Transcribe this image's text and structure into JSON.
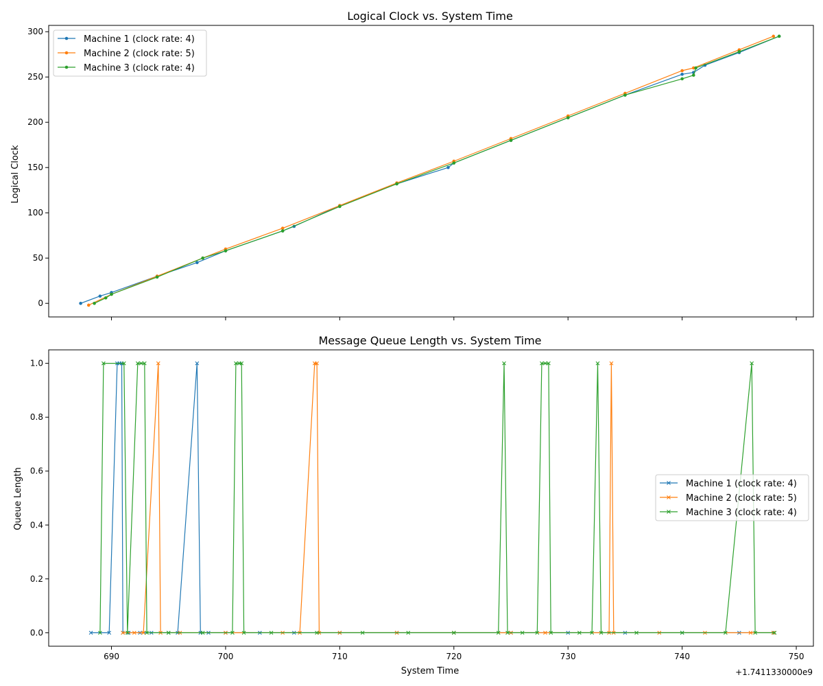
{
  "colors": {
    "machine1": "#1f77b4",
    "machine2": "#ff7f0e",
    "machine3": "#2ca02c"
  },
  "chart_data": [
    {
      "type": "line",
      "title": "Logical Clock vs. System Time",
      "xlabel": "",
      "ylabel": "Logical Clock",
      "xlim": [
        684.5,
        751.5
      ],
      "ylim": [
        -15,
        307
      ],
      "xticks": [
        690,
        700,
        710,
        720,
        730,
        740,
        750
      ],
      "xtick_labels_shown": false,
      "yticks": [
        0,
        50,
        100,
        150,
        200,
        250,
        300
      ],
      "grid": false,
      "legend_position": "upper-left",
      "marker": "circle",
      "series": [
        {
          "name": "Machine 1 (clock rate: 4)",
          "color": "#1f77b4",
          "x": [
            687.3,
            689.0,
            690.0,
            694.0,
            697.5,
            700.0,
            705.0,
            706.0,
            710.0,
            715.0,
            719.5,
            720.0,
            725.0,
            730.0,
            735.0,
            740.0,
            741.0,
            742.0,
            745.0,
            748.5
          ],
          "y": [
            0,
            8,
            12,
            30,
            45,
            58,
            80,
            85,
            108,
            132,
            150,
            155,
            180,
            205,
            230,
            253,
            255,
            263,
            277,
            295
          ]
        },
        {
          "name": "Machine 2 (clock rate: 5)",
          "color": "#ff7f0e",
          "x": [
            688.0,
            690.0,
            694.0,
            698.0,
            700.0,
            705.0,
            710.0,
            715.0,
            720.0,
            725.0,
            730.0,
            735.0,
            740.0,
            741.0,
            745.0,
            748.0
          ],
          "y": [
            -2,
            10,
            30,
            50,
            60,
            83,
            108,
            133,
            157,
            182,
            207,
            232,
            257,
            260,
            280,
            295
          ]
        },
        {
          "name": "Machine 3 (clock rate: 4)",
          "color": "#2ca02c",
          "x": [
            688.5,
            689.5,
            690.0,
            694.0,
            698.0,
            700.0,
            705.0,
            710.0,
            715.0,
            720.0,
            725.0,
            730.0,
            735.0,
            740.0,
            741.0,
            741.2,
            745.0,
            748.5
          ],
          "y": [
            0,
            6,
            10,
            29,
            50,
            58,
            80,
            107,
            132,
            155,
            180,
            205,
            230,
            248,
            252,
            260,
            278,
            295
          ]
        }
      ]
    },
    {
      "type": "line",
      "title": "Message Queue Length vs. System Time",
      "xlabel": "System Time",
      "ylabel": "Queue Length",
      "xlim": [
        684.5,
        751.5
      ],
      "ylim": [
        -0.05,
        1.05
      ],
      "xticks": [
        690,
        700,
        710,
        720,
        730,
        740,
        750
      ],
      "yticks": [
        0.0,
        0.2,
        0.4,
        0.6,
        0.8,
        1.0
      ],
      "offset_label": "+1.7411330000e9",
      "grid": false,
      "legend_position": "center-right",
      "marker": "x",
      "series": [
        {
          "name": "Machine 1 (clock rate: 4)",
          "color": "#1f77b4",
          "x": [
            688.2,
            689.8,
            690.5,
            690.7,
            690.9,
            691.0,
            691.5,
            692.5,
            693.5,
            695.0,
            695.8,
            697.5,
            697.8,
            698.5,
            700.0,
            703.0,
            706.0,
            710.0,
            715.0,
            720.0,
            725.0,
            730.0,
            735.0,
            740.0,
            745.0,
            748.0
          ],
          "y": [
            0,
            0,
            1,
            1,
            1,
            0,
            0,
            0,
            0,
            0,
            0,
            1,
            0,
            0,
            0,
            0,
            0,
            0,
            0,
            0,
            0,
            0,
            0,
            0,
            0,
            0
          ]
        },
        {
          "name": "Machine 2 (clock rate: 5)",
          "color": "#ff7f0e",
          "x": [
            691.0,
            692.0,
            692.8,
            694.1,
            694.3,
            696.0,
            700.0,
            705.0,
            706.5,
            707.8,
            708.0,
            708.2,
            710.0,
            715.0,
            720.0,
            725.0,
            728.0,
            733.6,
            733.8,
            734.0,
            738.0,
            742.0,
            746.0,
            748.0
          ],
          "y": [
            0,
            0,
            0,
            1,
            0,
            0,
            0,
            0,
            0,
            1,
            1,
            0,
            0,
            0,
            0,
            0,
            0,
            0,
            1,
            0,
            0,
            0,
            0,
            0
          ]
        },
        {
          "name": "Machine 3 (clock rate: 4)",
          "color": "#2ca02c",
          "x": [
            689.0,
            689.3,
            691.1,
            691.4,
            692.3,
            692.6,
            692.9,
            693.1,
            695.0,
            698.0,
            700.6,
            700.9,
            701.2,
            701.4,
            701.6,
            704.0,
            708.0,
            712.0,
            716.0,
            720.0,
            723.9,
            724.4,
            724.7,
            726.0,
            727.3,
            727.7,
            728.0,
            728.3,
            728.5,
            731.0,
            732.1,
            732.6,
            732.9,
            736.0,
            740.0,
            743.8,
            746.1,
            746.4,
            748.1
          ],
          "y": [
            0,
            1,
            1,
            0,
            1,
            1,
            1,
            0,
            0,
            0,
            0,
            1,
            1,
            1,
            0,
            0,
            0,
            0,
            0,
            0,
            0,
            1,
            0,
            0,
            0,
            1,
            1,
            1,
            0,
            0,
            0,
            1,
            0,
            0,
            0,
            0,
            1,
            0,
            0
          ]
        }
      ]
    }
  ]
}
